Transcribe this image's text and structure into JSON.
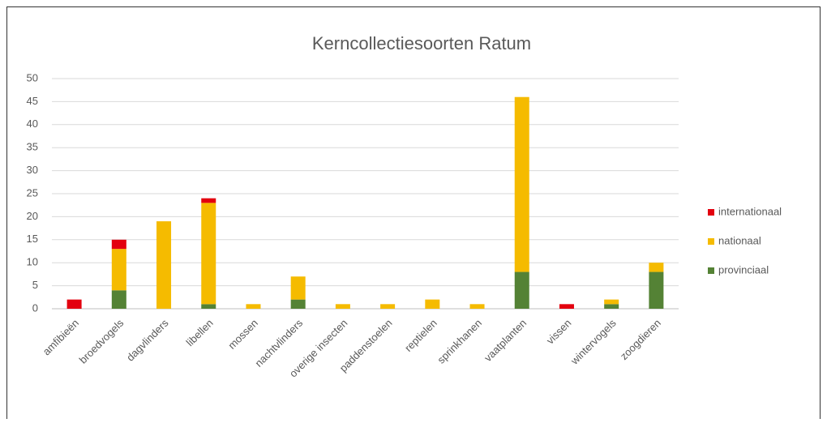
{
  "chart_data": {
    "type": "stacked_bar",
    "title": "Kerncollectiesoorten Ratum",
    "categories": [
      "amfibieën",
      "broedvogels",
      "dagvlinders",
      "libellen",
      "mossen",
      "nachtvlinders",
      "overige insecten",
      "paddenstoelen",
      "reptielen",
      "sprinkhanen",
      "vaatplanten",
      "vissen",
      "wintervogels",
      "zoogdieren"
    ],
    "series": [
      {
        "name": "provinciaal",
        "color": "#548235",
        "values": [
          0,
          4,
          0,
          1,
          0,
          2,
          0,
          0,
          0,
          0,
          8,
          0,
          1,
          8
        ]
      },
      {
        "name": "nationaal",
        "color": "#f5bb00",
        "values": [
          0,
          9,
          19,
          22,
          1,
          5,
          1,
          1,
          2,
          1,
          38,
          0,
          1,
          2
        ]
      },
      {
        "name": "internationaal",
        "color": "#e3000f",
        "values": [
          2,
          2,
          0,
          1,
          0,
          0,
          0,
          0,
          0,
          0,
          0,
          1,
          0,
          0
        ]
      }
    ],
    "ylim": [
      0,
      50
    ],
    "yticks": [
      0,
      5,
      10,
      15,
      20,
      25,
      30,
      35,
      40,
      45,
      50
    ],
    "grid": true,
    "legend": "right"
  }
}
